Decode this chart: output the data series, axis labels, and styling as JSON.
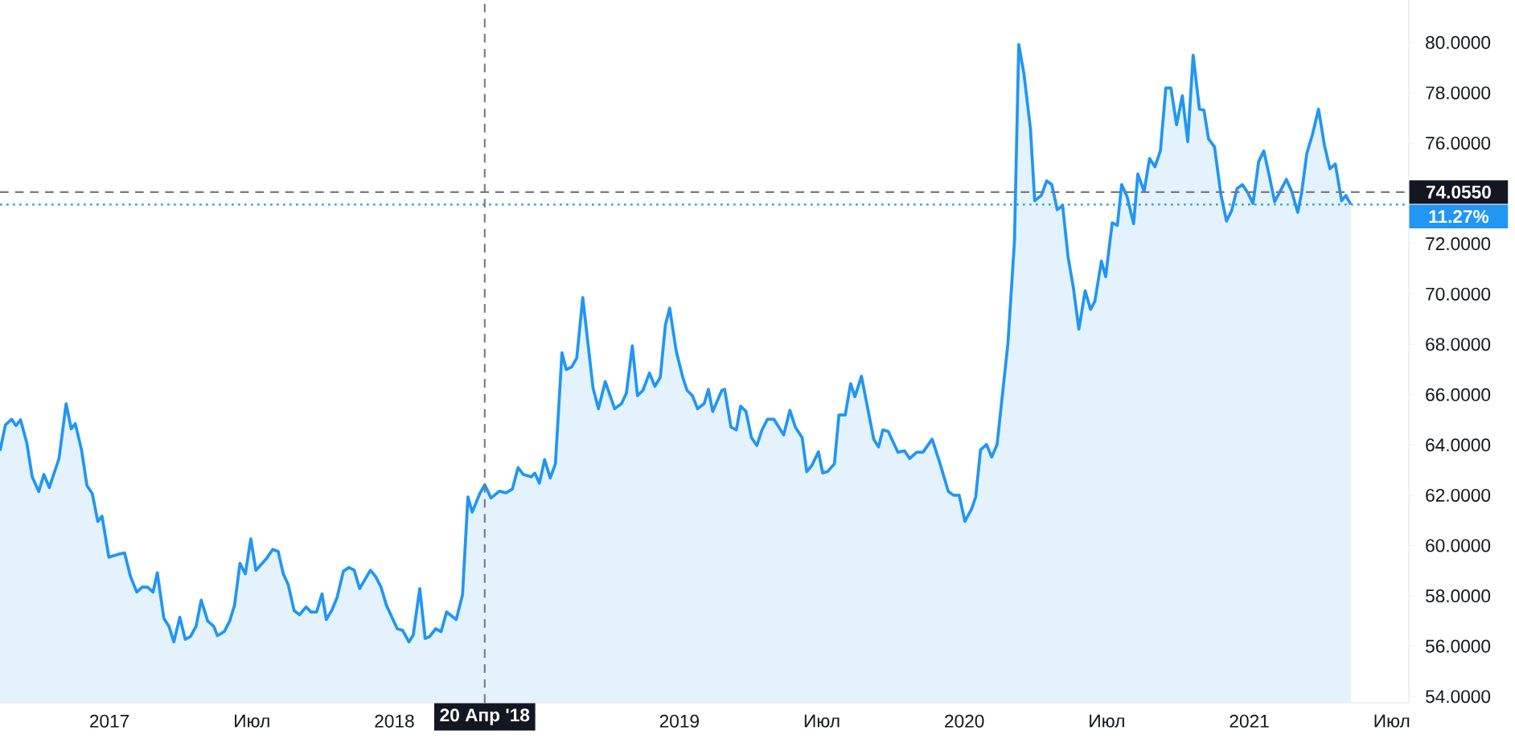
{
  "chart_data": {
    "type": "area",
    "color": "#2196f3",
    "x": [
      2016.616,
      2016.635,
      2016.657,
      2016.672,
      2016.688,
      2016.71,
      2016.729,
      2016.752,
      2016.77,
      2016.789,
      2016.823,
      2016.848,
      2016.866,
      2016.88,
      2016.902,
      2016.921,
      2016.94,
      2016.959,
      2016.974,
      2016.998,
      2017.03,
      2017.053,
      2017.074,
      2017.096,
      2017.115,
      2017.134,
      2017.153,
      2017.168,
      2017.191,
      2017.209,
      2017.226,
      2017.247,
      2017.266,
      2017.284,
      2017.304,
      2017.322,
      2017.345,
      2017.366,
      2017.379,
      2017.403,
      2017.422,
      2017.439,
      2017.458,
      2017.477,
      2017.496,
      2017.514,
      2017.552,
      2017.573,
      2017.592,
      2017.61,
      2017.627,
      2017.648,
      2017.667,
      2017.69,
      2017.708,
      2017.727,
      2017.746,
      2017.761,
      2017.78,
      2017.799,
      2017.821,
      2017.84,
      2017.859,
      2017.878,
      2017.916,
      2017.934,
      2017.953,
      2017.972,
      2018.01,
      2018.029,
      2018.051,
      2018.066,
      2018.089,
      2018.108,
      2018.123,
      2018.145,
      2018.164,
      2018.183,
      2018.217,
      2018.239,
      2018.258,
      2018.273,
      2018.301,
      2018.317,
      2018.339,
      2018.368,
      2018.392,
      2018.414,
      2018.434,
      2018.452,
      2018.48,
      2018.493,
      2018.509,
      2018.527,
      2018.547,
      2018.565,
      2018.588,
      2018.603,
      2018.622,
      2018.64,
      2018.661,
      2018.697,
      2018.716,
      2018.74,
      2018.773,
      2018.797,
      2018.814,
      2018.835,
      2018.853,
      2018.872,
      2018.895,
      2018.914,
      2018.933,
      2018.951,
      2018.966,
      2018.989,
      2019.012,
      2019.027,
      2019.046,
      2019.064,
      2019.087,
      2019.102,
      2019.117,
      2019.149,
      2019.159,
      2019.181,
      2019.2,
      2019.215,
      2019.234,
      2019.253,
      2019.272,
      2019.29,
      2019.309,
      2019.332,
      2019.366,
      2019.388,
      2019.407,
      2019.431,
      2019.447,
      2019.465,
      2019.488,
      2019.503,
      2019.52,
      2019.544,
      2019.56,
      2019.582,
      2019.601,
      2019.616,
      2019.639,
      2019.682,
      2019.699,
      2019.714,
      2019.733,
      2019.767,
      2019.79,
      2019.808,
      2019.833,
      2019.855,
      2019.887,
      2019.912,
      2019.944,
      2019.963,
      2019.982,
      2020.002,
      2020.025,
      2020.04,
      2020.057,
      2020.078,
      2020.096,
      2020.115,
      2020.153,
      2020.176,
      2020.191,
      2020.209,
      2020.232,
      2020.247,
      2020.27,
      2020.289,
      2020.307,
      2020.326,
      2020.345,
      2020.364,
      2020.383,
      2020.402,
      2020.424,
      2020.443,
      2020.458,
      2020.481,
      2020.496,
      2020.519,
      2020.537,
      2020.552,
      2020.571,
      2020.594,
      2020.609,
      2020.631,
      2020.65,
      2020.669,
      2020.688,
      2020.707,
      2020.725,
      2020.745,
      2020.765,
      2020.784,
      2020.803,
      2020.825,
      2020.841,
      2020.857,
      2020.878,
      2020.9,
      2020.92,
      2020.938,
      2020.957,
      2020.976,
      2020.995,
      2021.013,
      2021.033,
      2021.051,
      2021.07,
      2021.089,
      2021.108,
      2021.13,
      2021.149,
      2021.17,
      2021.183,
      2021.202,
      2021.221,
      2021.243,
      2021.264,
      2021.283,
      2021.302,
      2021.324,
      2021.339,
      2021.356
    ],
    "values": [
      63.77,
      64.8,
      65.02,
      64.77,
      65.0,
      64.08,
      62.73,
      62.15,
      62.83,
      62.31,
      63.46,
      65.64,
      64.64,
      64.85,
      63.81,
      62.39,
      62.06,
      60.96,
      61.17,
      59.54,
      59.65,
      59.71,
      58.77,
      58.15,
      58.35,
      58.35,
      58.15,
      58.92,
      57.11,
      56.79,
      56.17,
      57.15,
      56.27,
      56.38,
      56.79,
      57.83,
      57.0,
      56.79,
      56.42,
      56.58,
      57.0,
      57.63,
      59.29,
      58.88,
      60.27,
      59.02,
      59.5,
      59.85,
      59.77,
      58.88,
      58.46,
      57.42,
      57.25,
      57.56,
      57.36,
      57.36,
      58.08,
      57.06,
      57.42,
      57.94,
      58.98,
      59.13,
      59.02,
      58.29,
      59.02,
      58.77,
      58.35,
      57.63,
      56.69,
      56.63,
      56.17,
      56.44,
      58.29,
      56.31,
      56.38,
      56.69,
      56.58,
      57.36,
      57.06,
      58.04,
      61.94,
      61.33,
      62.1,
      62.42,
      61.89,
      62.16,
      62.1,
      62.25,
      63.1,
      62.83,
      62.73,
      62.88,
      62.48,
      63.42,
      62.69,
      63.25,
      67.67,
      67.0,
      67.1,
      67.46,
      69.86,
      66.27,
      65.44,
      66.52,
      65.44,
      65.64,
      66.06,
      67.94,
      65.96,
      66.17,
      66.86,
      66.33,
      66.69,
      68.77,
      69.44,
      67.73,
      66.69,
      66.17,
      65.96,
      65.44,
      65.64,
      66.21,
      65.33,
      66.17,
      66.21,
      64.71,
      64.6,
      65.54,
      65.33,
      64.29,
      63.98,
      64.6,
      65.02,
      65.02,
      64.4,
      65.38,
      64.71,
      64.29,
      62.94,
      63.19,
      63.73,
      62.89,
      62.94,
      63.25,
      65.19,
      65.19,
      66.44,
      65.92,
      66.73,
      64.23,
      63.92,
      64.6,
      64.54,
      63.71,
      63.77,
      63.46,
      63.71,
      63.71,
      64.23,
      63.36,
      62.15,
      62.0,
      62.0,
      60.96,
      61.44,
      61.94,
      63.81,
      64.02,
      63.52,
      64.02,
      68.04,
      72.1,
      79.92,
      78.77,
      76.58,
      73.71,
      73.92,
      74.5,
      74.35,
      73.35,
      73.52,
      71.48,
      70.23,
      68.6,
      70.13,
      69.39,
      69.71,
      71.31,
      70.69,
      72.83,
      72.73,
      74.35,
      73.88,
      72.79,
      74.77,
      74.08,
      75.39,
      75.06,
      75.69,
      78.19,
      78.19,
      76.73,
      77.88,
      76.06,
      79.5,
      77.35,
      77.31,
      76.17,
      75.85,
      73.98,
      72.9,
      73.31,
      74.19,
      74.35,
      74.02,
      73.6,
      75.27,
      75.69,
      74.71,
      73.67,
      74.08,
      74.56,
      74.08,
      73.25,
      73.98,
      75.6,
      76.31,
      77.35,
      75.9,
      74.98,
      75.17,
      73.71,
      73.92,
      73.56
    ],
    "xlim": [
      2016.616,
      2021.56
    ],
    "ylim": [
      53.75,
      81.69
    ],
    "xticks": [
      2017,
      {
        "value": 2017.5,
        "label": "Июл"
      },
      2018,
      2019,
      {
        "value": 2019.5,
        "label": "Июл"
      },
      2020,
      {
        "value": 2020.5,
        "label": "Июл"
      },
      2021,
      {
        "value": 2021.5,
        "label": "Июл"
      }
    ],
    "yticks": [
      {
        "value": 54,
        "label": "54.0000"
      },
      {
        "value": 56,
        "label": "56.0000"
      },
      {
        "value": 58,
        "label": "58.0000"
      },
      {
        "value": 60,
        "label": "60.0000"
      },
      {
        "value": 62,
        "label": "62.0000"
      },
      {
        "value": 64,
        "label": "64.0000"
      },
      {
        "value": 66,
        "label": "66.0000"
      },
      {
        "value": 68,
        "label": "68.0000"
      },
      {
        "value": 70,
        "label": "70.0000"
      },
      {
        "value": 72,
        "label": "72.0000"
      },
      {
        "value": 76,
        "label": "76.0000"
      },
      {
        "value": 78,
        "label": "78.0000"
      },
      {
        "value": 80,
        "label": "80.0000"
      }
    ],
    "ref_lines": [
      {
        "axis": "x",
        "value": 2018.317,
        "label": "20 Апр '18",
        "color": "#787b86",
        "line_style": "dashed"
      },
      {
        "axis": "y",
        "value": 74.055,
        "label": "74.0550",
        "color": "#787b86",
        "line_style": "dashed"
      },
      {
        "axis": "y",
        "value": 73.56,
        "color": "#2196f3",
        "line_style": "dotted"
      }
    ],
    "annotations": [
      "11.27%"
    ]
  }
}
